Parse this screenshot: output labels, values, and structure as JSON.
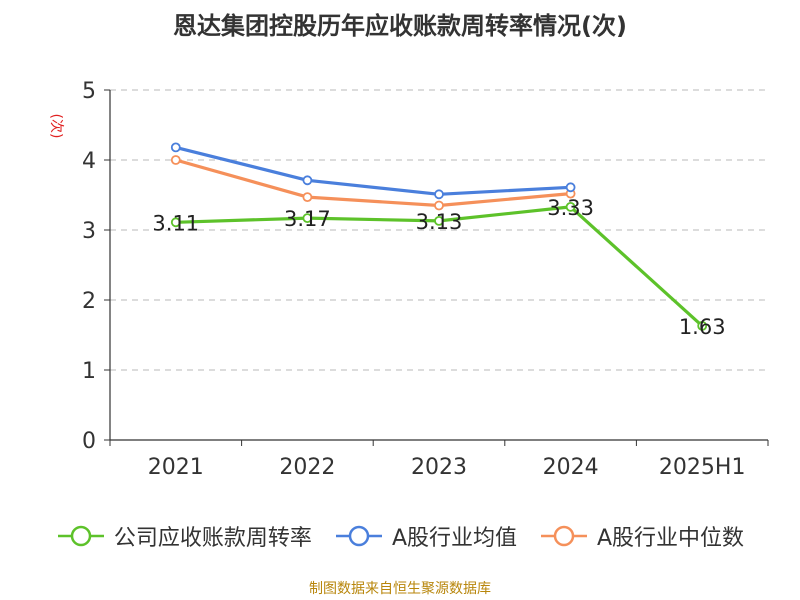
{
  "chart_data": {
    "type": "line",
    "title": "恩达集团控股历年应收账款周转率情况(次)",
    "ylabel": "(次)",
    "xlabel": "",
    "categories": [
      "2021",
      "2022",
      "2023",
      "2024",
      "2025H1"
    ],
    "ylim": [
      0,
      5
    ],
    "yticks": [
      0,
      1,
      2,
      3,
      4,
      5
    ],
    "grid": true,
    "legend_position": "bottom",
    "series": [
      {
        "name": "公司应收账款周转率",
        "color": "#5dc22a",
        "values": [
          3.11,
          3.17,
          3.13,
          3.33,
          1.63
        ],
        "labels": [
          "3.11",
          "3.17",
          "3.13",
          "3.33",
          "1.63"
        ]
      },
      {
        "name": "A股行业均值",
        "color": "#4a7fdc",
        "values": [
          4.18,
          3.71,
          3.51,
          3.61,
          null
        ],
        "labels": []
      },
      {
        "name": "A股行业中位数",
        "color": "#f5905a",
        "values": [
          4.0,
          3.47,
          3.35,
          3.52,
          null
        ],
        "labels": []
      }
    ]
  },
  "source_note": "制图数据来自恒生聚源数据库"
}
